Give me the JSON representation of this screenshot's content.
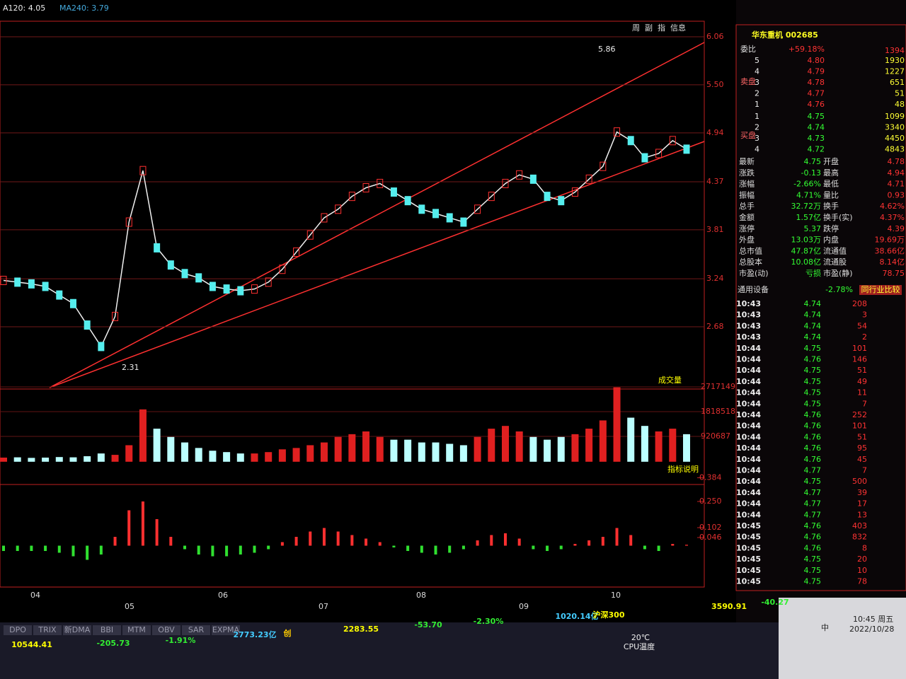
{
  "header": {
    "indicators": [
      "A120: 4.05",
      "MA240: 3.79"
    ]
  },
  "toolbar": [
    "周",
    "副",
    "指",
    "信息"
  ],
  "price_chart": {
    "yticks": [
      6.06,
      {
        "value": 5.5,
        "label": "5.50"
      },
      4.94,
      4.37,
      3.81,
      3.24,
      2.68
    ],
    "high_label": "5.86",
    "low_label": "2.31",
    "closes": [
      3.22,
      3.2,
      3.18,
      3.15,
      3.05,
      2.95,
      2.7,
      2.45,
      2.8,
      3.9,
      4.5,
      3.6,
      3.4,
      3.3,
      3.25,
      3.15,
      3.12,
      3.1,
      3.12,
      3.2,
      3.35,
      3.55,
      3.75,
      3.95,
      4.05,
      4.2,
      4.3,
      4.35,
      4.25,
      4.15,
      4.05,
      4,
      3.95,
      3.9,
      4.05,
      4.2,
      4.35,
      4.45,
      4.4,
      4.2,
      4.15,
      4.25,
      4.4,
      4.55,
      4.95,
      4.85,
      4.65,
      4.7,
      4.85,
      4.75
    ]
  },
  "volume_chart": {
    "title": "成交量",
    "note": "指标说明",
    "yticks": [
      2717149,
      1818518,
      920687
    ],
    "values": [
      150000,
      160000,
      140000,
      150000,
      170000,
      160000,
      200000,
      300000,
      250000,
      600000,
      1900000,
      1200000,
      900000,
      700000,
      500000,
      400000,
      350000,
      300000,
      300000,
      350000,
      450000,
      500000,
      600000,
      700000,
      900000,
      1000000,
      1100000,
      900000,
      800000,
      800000,
      700000,
      700000,
      650000,
      600000,
      900000,
      1200000,
      1300000,
      1100000,
      900000,
      800000,
      900000,
      1000000,
      1200000,
      1500000,
      2700000,
      1600000,
      1300000,
      1100000,
      1200000,
      1000000
    ]
  },
  "macd_chart": {
    "yticks": [
      0.384,
      {
        "value": 0.25,
        "label": "0.250"
      },
      0.102,
      0.046
    ],
    "values": [
      -0.03,
      -0.03,
      -0.03,
      -0.03,
      -0.04,
      -0.06,
      -0.08,
      -0.05,
      0.05,
      0.2,
      0.25,
      0.15,
      0.05,
      -0.02,
      -0.05,
      -0.06,
      -0.06,
      -0.05,
      -0.04,
      -0.02,
      0.02,
      0.05,
      0.08,
      0.1,
      0.08,
      0.06,
      0.04,
      0.02,
      -0.01,
      -0.03,
      -0.04,
      -0.05,
      -0.04,
      -0.02,
      0.03,
      0.06,
      0.07,
      0.04,
      -0.02,
      -0.03,
      -0.02,
      0.01,
      0.03,
      0.05,
      0.1,
      0.06,
      -0.02,
      -0.03,
      0.01,
      0.005
    ]
  },
  "x_labels": [
    "04",
    "05",
    "06",
    "07",
    "08",
    "09",
    "10"
  ],
  "tabs": [
    "DPO",
    "TRIX",
    "新DMA",
    "BBI",
    "MTM",
    "OBV",
    "SAR",
    "EXPMA"
  ],
  "ticker": [
    "10544.41",
    "-205.73",
    "-1.91%",
    "2773.23亿",
    "创",
    "2283.55",
    "-53.70",
    "-2.30%",
    "1020.14亿",
    "沪深300",
    "3590.91",
    "-40.27"
  ],
  "quote": {
    "title": "华东重机 002685",
    "ratio_label": "委比",
    "ratio": "+59.18%",
    "ratio_vol": "1394",
    "sell_label": "卖盘",
    "buy_label": "买盘",
    "sell": [
      [
        "5",
        "4.80",
        "1930"
      ],
      [
        "4",
        "4.79",
        "1227"
      ],
      [
        "3",
        "4.78",
        "651"
      ],
      [
        "2",
        "4.77",
        "51"
      ],
      [
        "1",
        "4.76",
        "48"
      ]
    ],
    "buy": [
      [
        "1",
        "4.75",
        "1099"
      ],
      [
        "2",
        "4.74",
        "3340"
      ],
      [
        "3",
        "4.73",
        "4450"
      ],
      [
        "4",
        "4.72",
        "4843"
      ]
    ],
    "stats": [
      [
        "最新",
        "4.75",
        "开盘",
        "4.78"
      ],
      [
        "涨跌",
        "-0.13",
        "最高",
        "4.94"
      ],
      [
        "涨幅",
        "-2.66%",
        "最低",
        "4.71"
      ],
      [
        "振幅",
        "4.71%",
        "量比",
        "0.93"
      ],
      [
        "总手",
        "32.72万",
        "换手",
        "4.62%"
      ],
      [
        "金额",
        "1.57亿",
        "换手(实)",
        "4.37%"
      ],
      [
        "涨停",
        "5.37",
        "跌停",
        "4.39"
      ],
      [
        "外盘",
        "13.03万",
        "内盘",
        "19.69万"
      ],
      [
        "总市值",
        "47.87亿",
        "流通值",
        "38.66亿"
      ],
      [
        "总股本",
        "10.08亿",
        "流通股",
        "8.14亿"
      ],
      [
        "市盈(动)",
        "亏损",
        "市盈(静)",
        "78.75"
      ]
    ],
    "industry": "通用设备",
    "industry_change": "-2.78%",
    "industry_button": "同行业比较",
    "ticks": [
      [
        "10:43",
        "4.74",
        "208"
      ],
      [
        "10:43",
        "4.74",
        "3"
      ],
      [
        "10:43",
        "4.74",
        "54"
      ],
      [
        "10:43",
        "4.74",
        "2"
      ],
      [
        "10:44",
        "4.75",
        "101"
      ],
      [
        "10:44",
        "4.76",
        "146"
      ],
      [
        "10:44",
        "4.75",
        "51"
      ],
      [
        "10:44",
        "4.75",
        "49"
      ],
      [
        "10:44",
        "4.75",
        "11"
      ],
      [
        "10:44",
        "4.75",
        "7"
      ],
      [
        "10:44",
        "4.76",
        "252"
      ],
      [
        "10:44",
        "4.76",
        "101"
      ],
      [
        "10:44",
        "4.76",
        "51"
      ],
      [
        "10:44",
        "4.76",
        "95"
      ],
      [
        "10:44",
        "4.76",
        "45"
      ],
      [
        "10:44",
        "4.77",
        "7"
      ],
      [
        "10:44",
        "4.75",
        "500"
      ],
      [
        "10:44",
        "4.77",
        "39"
      ],
      [
        "10:44",
        "4.77",
        "17"
      ],
      [
        "10:44",
        "4.77",
        "13"
      ],
      [
        "10:45",
        "4.76",
        "403"
      ],
      [
        "10:45",
        "4.76",
        "832"
      ],
      [
        "10:45",
        "4.76",
        "8"
      ],
      [
        "10:45",
        "4.75",
        "20"
      ],
      [
        "10:45",
        "4.75",
        "10"
      ],
      [
        "10:45",
        "4.75",
        "78"
      ]
    ]
  },
  "taskbar": {
    "temp": "20℃",
    "temp_label": "CPU温度",
    "ime": "中",
    "time": "10:45 周五",
    "date": "2022/10/28"
  }
}
